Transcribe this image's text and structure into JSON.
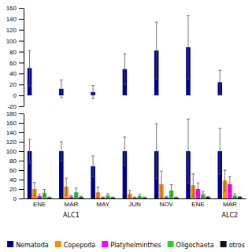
{
  "chart_data": [
    {
      "type": "bar",
      "categories": [
        "ENE",
        "MAR",
        "MAY",
        "JUN",
        "NOV",
        "ENE",
        "MAR"
      ],
      "series": [
        {
          "name": "Nematoda",
          "color": "#00008B",
          "values": [
            50,
            12,
            6,
            48,
            82,
            88,
            24
          ],
          "errors": [
            32,
            16,
            12,
            28,
            52,
            58,
            22
          ]
        }
      ],
      "ylim": [
        -20,
        160
      ],
      "yticks": [
        -20,
        0,
        20,
        40,
        60,
        80,
        100,
        120,
        140,
        160
      ],
      "tick_labels": "y"
    },
    {
      "type": "bar",
      "categories": [
        "ENE",
        "MAR",
        "MAY",
        "JUN",
        "NOV",
        "ENE",
        "MAR"
      ],
      "subcategories": [
        null,
        "ALC1",
        null,
        null,
        null,
        null,
        "ALC2"
      ],
      "series": [
        {
          "name": "Nematoda",
          "color": "#00008B",
          "values": [
            100,
            100,
            68,
            100,
            100,
            100,
            100
          ],
          "errors": [
            25,
            20,
            22,
            30,
            58,
            68,
            48
          ]
        },
        {
          "name": "Copepoda",
          "color": "#FF8C00",
          "values": [
            20,
            25,
            13,
            10,
            30,
            28,
            38
          ],
          "errors": [
            14,
            18,
            11,
            7,
            28,
            24,
            22
          ]
        },
        {
          "name": "Platyhelminthes",
          "color": "#FF00FF",
          "values": [
            5,
            4,
            2,
            2,
            3,
            20,
            30
          ],
          "errors": [
            4,
            2,
            1,
            1,
            2,
            13,
            16
          ]
        },
        {
          "name": "Oligochaeta",
          "color": "#32CD32",
          "values": [
            12,
            13,
            6,
            5,
            17,
            9,
            6
          ],
          "errors": [
            7,
            9,
            4,
            3,
            12,
            6,
            4
          ]
        },
        {
          "name": "otros",
          "color": "#111111",
          "values": [
            2,
            3,
            2,
            2,
            2,
            3,
            3
          ],
          "errors": [
            1,
            2,
            1,
            1,
            1,
            1,
            1
          ]
        }
      ],
      "ylim": [
        0,
        180
      ],
      "yticks": [
        0,
        20,
        40,
        60,
        80,
        100,
        120,
        140,
        160,
        180
      ],
      "legend": "bottom"
    }
  ]
}
